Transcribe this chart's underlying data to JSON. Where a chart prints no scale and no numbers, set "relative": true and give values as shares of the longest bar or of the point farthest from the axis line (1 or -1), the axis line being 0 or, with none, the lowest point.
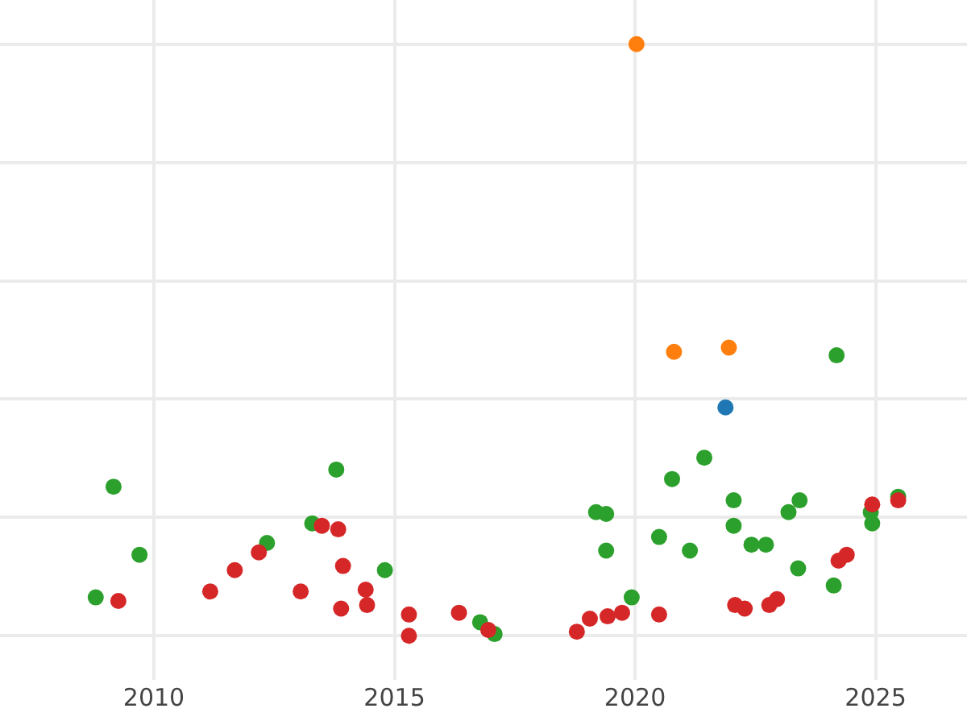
{
  "chart_data": {
    "type": "scatter",
    "relative": true,
    "marker": "circle",
    "grid": true,
    "tick_labels": "x",
    "xlim": [
      2006.8,
      2026.9
    ],
    "xticks": [
      2010,
      2015,
      2020,
      2025
    ],
    "series": [
      {
        "color": "#1f77b4",
        "x": [
          2021.88
        ],
        "values": [
          0.386
        ]
      },
      {
        "color": "#ff7f0e",
        "x": [
          2020.03,
          2020.81,
          2021.95
        ],
        "values": [
          1.0,
          0.48,
          0.487
        ]
      },
      {
        "color": "#2ca02c",
        "x": [
          2008.79,
          2009.16,
          2009.7,
          2012.35,
          2013.29,
          2013.79,
          2014.8,
          2016.78,
          2017.08,
          2019.19,
          2019.4,
          2019.4,
          2019.93,
          2020.5,
          2020.77,
          2021.14,
          2021.44,
          2022.05,
          2022.05,
          2022.42,
          2022.72,
          2023.19,
          2023.42,
          2023.39,
          2024.13,
          2024.19,
          2024.9,
          2024.93,
          2025.47
        ],
        "values": [
          0.065,
          0.252,
          0.137,
          0.157,
          0.19,
          0.281,
          0.111,
          0.023,
          0.003,
          0.209,
          0.206,
          0.144,
          0.065,
          0.167,
          0.265,
          0.144,
          0.301,
          0.229,
          0.186,
          0.154,
          0.154,
          0.209,
          0.229,
          0.114,
          0.085,
          0.474,
          0.209,
          0.19,
          0.235
        ]
      },
      {
        "color": "#d62728",
        "x": [
          2009.26,
          2011.17,
          2011.68,
          2012.18,
          2013.05,
          2013.49,
          2013.83,
          2013.93,
          2013.89,
          2014.4,
          2014.43,
          2015.3,
          2015.3,
          2016.34,
          2016.95,
          2018.79,
          2019.06,
          2019.43,
          2019.73,
          2020.5,
          2022.08,
          2022.28,
          2022.79,
          2022.95,
          2024.23,
          2024.4,
          2024.93,
          2025.47
        ],
        "values": [
          0.059,
          0.075,
          0.111,
          0.141,
          0.075,
          0.186,
          0.18,
          0.118,
          0.046,
          0.078,
          0.052,
          0.036,
          0.0,
          0.039,
          0.01,
          0.007,
          0.029,
          0.033,
          0.039,
          0.036,
          0.052,
          0.046,
          0.052,
          0.062,
          0.127,
          0.137,
          0.222,
          0.229
        ]
      }
    ]
  }
}
